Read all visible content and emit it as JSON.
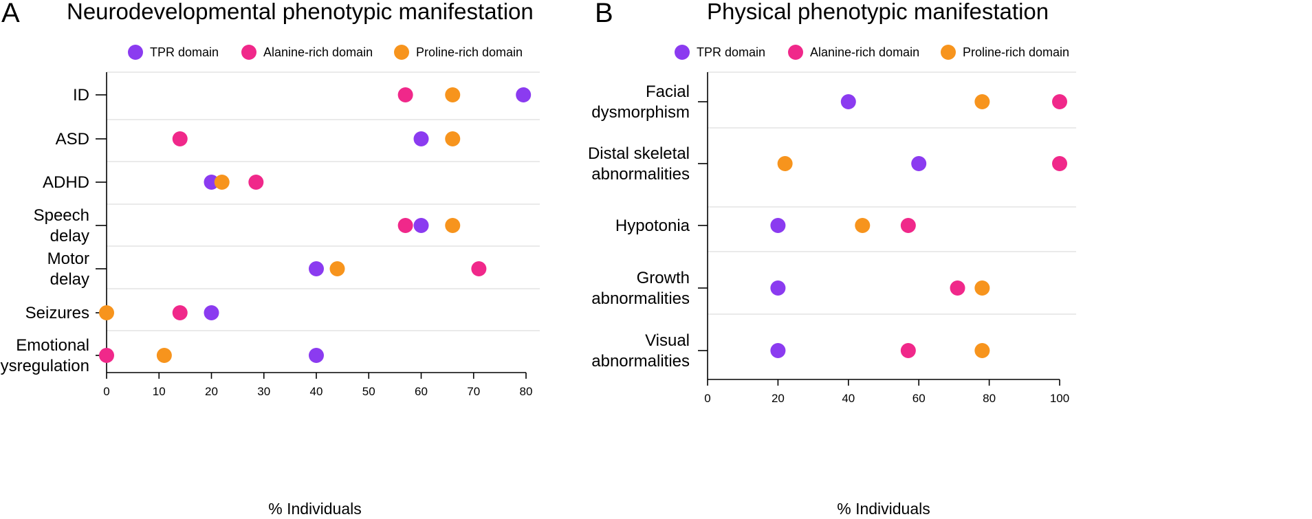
{
  "colors": {
    "TPR domain": "#8b3bf0",
    "Alanine-rich domain": "#f0288a",
    "Proline-rich domain": "#f7941d"
  },
  "chart_data": [
    {
      "type": "scatter",
      "panel": "A",
      "title": "Neurodevelopmental phenotypic manifestation",
      "xlabel": "% Individuals",
      "xlim": [
        0,
        80
      ],
      "xticks": [
        0,
        10,
        20,
        30,
        40,
        50,
        60,
        70,
        80
      ],
      "categories": [
        {
          "label": [
            "ID"
          ],
          "values": {
            "TPR domain": 79.5,
            "Alanine-rich domain": 57,
            "Proline-rich domain": 66
          }
        },
        {
          "label": [
            "ASD"
          ],
          "values": {
            "TPR domain": 60,
            "Alanine-rich domain": 14,
            "Proline-rich domain": 66
          }
        },
        {
          "label": [
            "ADHD"
          ],
          "values": {
            "TPR domain": 20,
            "Alanine-rich domain": 28.5,
            "Proline-rich domain": 22
          }
        },
        {
          "label": [
            "Speech",
            "delay"
          ],
          "values": {
            "TPR domain": 60,
            "Alanine-rich domain": 57,
            "Proline-rich domain": 66
          }
        },
        {
          "label": [
            "Motor",
            "delay"
          ],
          "values": {
            "TPR domain": 40,
            "Alanine-rich domain": 71,
            "Proline-rich domain": 44
          }
        },
        {
          "label": [
            "Seizures"
          ],
          "values": {
            "TPR domain": 20,
            "Alanine-rich domain": 14,
            "Proline-rich domain": 0
          }
        },
        {
          "label": [
            "Emotional",
            "dysregulation"
          ],
          "values": {
            "TPR domain": 40,
            "Alanine-rich domain": 0,
            "Proline-rich domain": 11
          }
        }
      ],
      "series": [
        "TPR domain",
        "Alanine-rich domain",
        "Proline-rich domain"
      ],
      "legend": "top"
    },
    {
      "type": "scatter",
      "panel": "B",
      "title": "Physical phenotypic manifestation",
      "xlabel": "% Individuals",
      "xlim": [
        0,
        100
      ],
      "xticks": [
        0,
        20,
        40,
        60,
        80,
        100
      ],
      "categories": [
        {
          "label": [
            "Facial",
            "dysmorphism"
          ],
          "values": {
            "TPR domain": 40,
            "Alanine-rich domain": 100,
            "Proline-rich domain": 78
          }
        },
        {
          "label": [
            "Distal skeletal",
            "abnormalities"
          ],
          "values": {
            "TPR domain": 60,
            "Alanine-rich domain": 100,
            "Proline-rich domain": 22
          }
        },
        {
          "label": [
            "Hypotonia"
          ],
          "values": {
            "TPR domain": 20,
            "Alanine-rich domain": 57,
            "Proline-rich domain": 44
          }
        },
        {
          "label": [
            "Growth",
            "abnormalities"
          ],
          "values": {
            "TPR domain": 20,
            "Alanine-rich domain": 71,
            "Proline-rich domain": 78
          }
        },
        {
          "label": [
            "Visual",
            "abnormalities"
          ],
          "values": {
            "TPR domain": 20,
            "Alanine-rich domain": 57,
            "Proline-rich domain": 78
          }
        }
      ],
      "series": [
        "TPR domain",
        "Alanine-rich domain",
        "Proline-rich domain"
      ],
      "legend": "top"
    }
  ]
}
